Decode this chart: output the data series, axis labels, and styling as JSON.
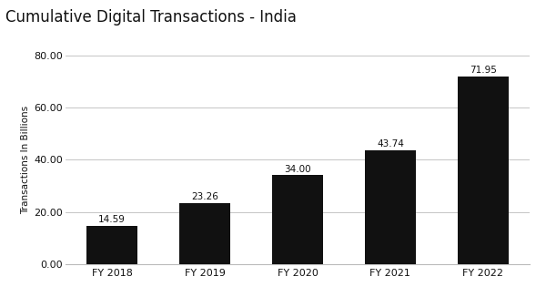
{
  "title": "Cumulative Digital Transactions - India",
  "categories": [
    "FY 2018",
    "FY 2019",
    "FY 2020",
    "FY 2021",
    "FY 2022"
  ],
  "values": [
    14.59,
    23.26,
    34.0,
    43.74,
    71.95
  ],
  "bar_color": "#111111",
  "ylabel": "Transactions In Billions",
  "ylim": [
    0,
    80
  ],
  "yticks": [
    0.0,
    20.0,
    40.0,
    60.0,
    80.0
  ],
  "title_fontsize": 12,
  "label_fontsize": 7.5,
  "tick_fontsize": 8,
  "ylabel_fontsize": 7.5,
  "bar_width": 0.55,
  "background_color": "#ffffff",
  "grid_color": "#bbbbbb"
}
